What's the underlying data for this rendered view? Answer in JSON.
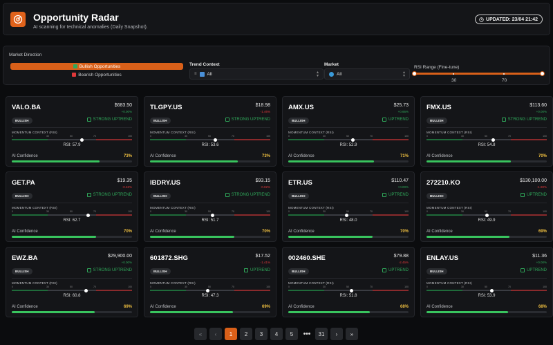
{
  "header": {
    "title": "Opportunity Radar",
    "subtitle": "AI scanning for technical anomalies (Daily Snapshot).",
    "updated": "UPDATED: 23/04 21:42"
  },
  "filters": {
    "direction_label": "Market Direction",
    "bullish_label": "Bullish Opportunities",
    "bearish_label": "Bearish Opportunities",
    "trend_label": "Trend Context",
    "trend_value": "All",
    "market_label": "Market",
    "market_value": "All",
    "rsi_label": "RSI Range (Fine-tune)",
    "rsi_low": "30",
    "rsi_high": "70"
  },
  "card_labels": {
    "momentum": "MOMENTUM CONTEXT (RSI)",
    "t0": "0",
    "t30": "30",
    "t50": "50",
    "t70": "70",
    "t100": "100",
    "confidence": "AI Confidence"
  },
  "cards": [
    {
      "symbol": "VALO.BA",
      "price": "$683.50",
      "change": "+0.00%",
      "dir": "up",
      "badge": "BULLISH",
      "trend": "STRONG UPTREND",
      "rsi": 57.9,
      "rsi_text": "RSI: 57.9",
      "conf": 73,
      "conf_text": "73%"
    },
    {
      "symbol": "TLGPY.US",
      "price": "$18.98",
      "change": "-1.46%",
      "dir": "down",
      "badge": "BULLISH",
      "trend": "STRONG UPTREND",
      "rsi": 53.6,
      "rsi_text": "RSI: 53.6",
      "conf": 73,
      "conf_text": "73%"
    },
    {
      "symbol": "AMX.US",
      "price": "$25.73",
      "change": "+0.66%",
      "dir": "up",
      "badge": "BULLISH",
      "trend": "UPTREND",
      "rsi": 52.9,
      "rsi_text": "RSI: 52.9",
      "conf": 71,
      "conf_text": "71%"
    },
    {
      "symbol": "FMX.US",
      "price": "$113.60",
      "change": "+0.00%",
      "dir": "up",
      "badge": "BULLISH",
      "trend": "STRONG UPTREND",
      "rsi": 54.8,
      "rsi_text": "RSI: 54.8",
      "conf": 70,
      "conf_text": "70%"
    },
    {
      "symbol": "GET.PA",
      "price": "$19.35",
      "change": "-0.46%",
      "dir": "down",
      "badge": "BULLISH",
      "trend": "STRONG UPTREND",
      "rsi": 62.7,
      "rsi_text": "RSI: 62.7",
      "conf": 70,
      "conf_text": "70%"
    },
    {
      "symbol": "IBDRY.US",
      "price": "$93.15",
      "change": "-0.02%",
      "dir": "down",
      "badge": "BULLISH",
      "trend": "STRONG UPTREND",
      "rsi": 51.7,
      "rsi_text": "RSI: 51.7",
      "conf": 70,
      "conf_text": "70%"
    },
    {
      "symbol": "ETR.US",
      "price": "$110.47",
      "change": "+0.00%",
      "dir": "up",
      "badge": "BULLISH",
      "trend": "UPTREND",
      "rsi": 48.0,
      "rsi_text": "RSI: 48.0",
      "conf": 70,
      "conf_text": "70%"
    },
    {
      "symbol": "272210.KO",
      "price": "$130,100.00",
      "change": "-1.90%",
      "dir": "down",
      "badge": "BULLISH",
      "trend": "UPTREND",
      "rsi": 49.9,
      "rsi_text": "RSI: 49.9",
      "conf": 69,
      "conf_text": "69%"
    },
    {
      "symbol": "EWZ.BA",
      "price": "$29,900.00",
      "change": "+0.00%",
      "dir": "up",
      "badge": "BULLISH",
      "trend": "STRONG UPTREND",
      "rsi": 60.8,
      "rsi_text": "RSI: 60.8",
      "conf": 69,
      "conf_text": "69%"
    },
    {
      "symbol": "601872.SHG",
      "price": "$17.52",
      "change": "-1.41%",
      "dir": "down",
      "badge": "BULLISH",
      "trend": "UPTREND",
      "rsi": 47.3,
      "rsi_text": "RSI: 47.3",
      "conf": 69,
      "conf_text": "69%"
    },
    {
      "symbol": "002460.SHE",
      "price": "$79.88",
      "change": "-2.45%",
      "dir": "down",
      "badge": "BULLISH",
      "trend": "UPTREND",
      "rsi": 51.8,
      "rsi_text": "RSI: 51.8",
      "conf": 68,
      "conf_text": "68%"
    },
    {
      "symbol": "ENLAY.US",
      "price": "$11.36",
      "change": "+0.00%",
      "dir": "up",
      "badge": "BULLISH",
      "trend": "UPTREND",
      "rsi": 53.9,
      "rsi_text": "RSI: 53.9",
      "conf": 68,
      "conf_text": "68%"
    }
  ],
  "pagination": {
    "first": "«",
    "prev": "‹",
    "pages": [
      "1",
      "2",
      "3",
      "4",
      "5"
    ],
    "ellipsis": "•••",
    "last_page": "31",
    "next": "›",
    "last": "»",
    "current": "1"
  },
  "colors": {
    "accent": "#d96019",
    "up": "#2fa85a",
    "down": "#e0383a",
    "confidence_fill": "#39c45e"
  }
}
